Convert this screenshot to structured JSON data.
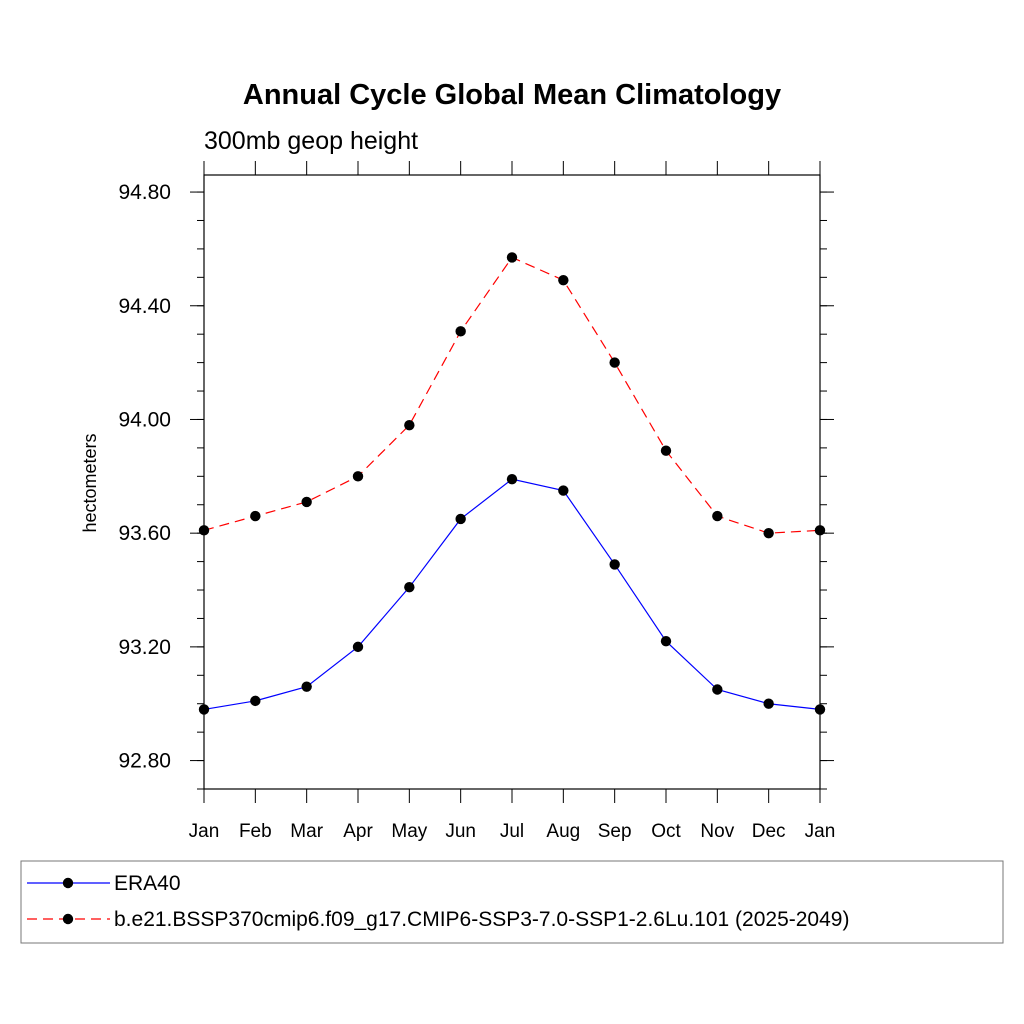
{
  "chart_data": {
    "type": "line",
    "title": "Annual Cycle Global Mean Climatology",
    "subtitle": "300mb geop height",
    "xlabel": "",
    "ylabel": "hectometers",
    "categories": [
      "Jan",
      "Feb",
      "Mar",
      "Apr",
      "May",
      "Jun",
      "Jul",
      "Aug",
      "Sep",
      "Oct",
      "Nov",
      "Dec",
      "Jan"
    ],
    "ylim": [
      92.7,
      94.86
    ],
    "yticks": [
      "92.80",
      "93.20",
      "93.60",
      "94.00",
      "94.40",
      "94.80"
    ],
    "grid": false,
    "legend_position": "bottom",
    "series": [
      {
        "name": "ERA40",
        "color": "#0000ff",
        "line_style": "solid",
        "marker": "filled-circle",
        "values": [
          92.98,
          93.01,
          93.06,
          93.2,
          93.41,
          93.65,
          93.79,
          93.75,
          93.49,
          93.22,
          93.05,
          93.0,
          92.98
        ]
      },
      {
        "name": "b.e21.BSSP370cmip6.f09_g17.CMIP6-SSP3-7.0-SSP1-2.6Lu.101 (2025-2049)",
        "color": "#ff0000",
        "line_style": "dashed",
        "marker": "filled-circle",
        "values": [
          93.61,
          93.66,
          93.71,
          93.8,
          93.98,
          94.31,
          94.57,
          94.49,
          94.2,
          93.89,
          93.66,
          93.6,
          93.61
        ]
      }
    ]
  }
}
